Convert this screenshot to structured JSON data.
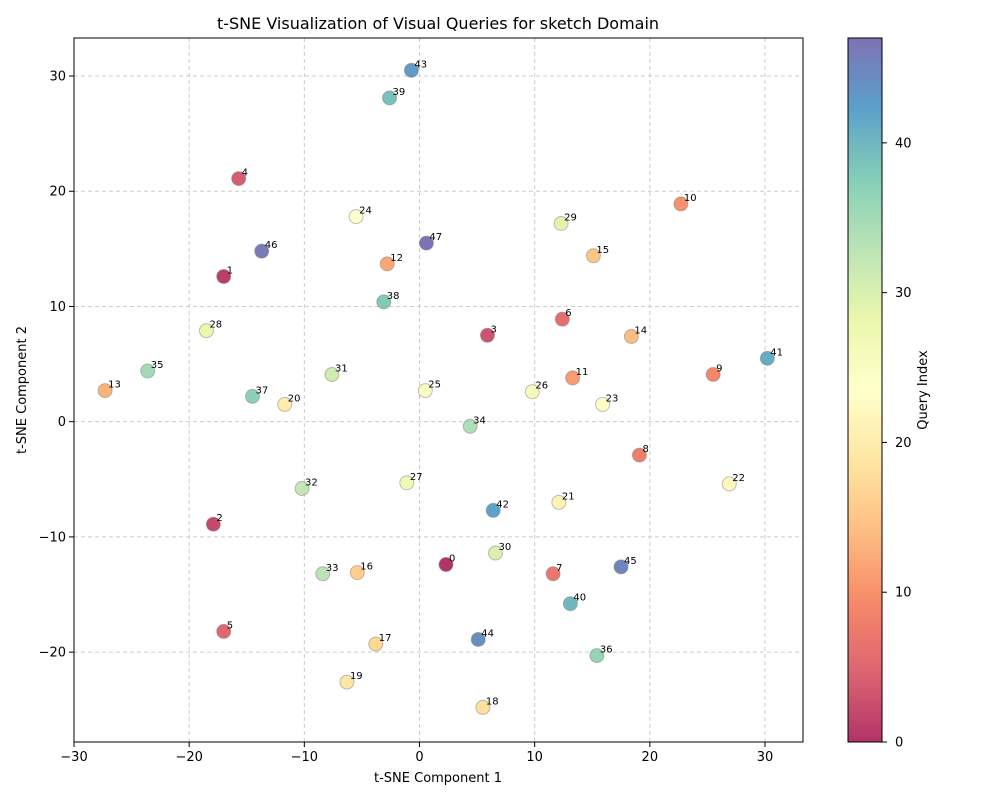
{
  "chart_data": {
    "type": "scatter",
    "title": "t-SNE Visualization of Visual Queries for sketch Domain",
    "xlabel": "t-SNE Component 1",
    "ylabel": "t-SNE Component 2",
    "xlim": [
      -30,
      33.3
    ],
    "ylim": [
      -27.8,
      33.3
    ],
    "xticks": [
      -30,
      -20,
      -10,
      0,
      10,
      20,
      30
    ],
    "yticks": [
      -20,
      -10,
      0,
      10,
      20,
      30
    ],
    "grid": true,
    "colormap": "Spectral",
    "colorbar": {
      "label": "Query Index",
      "min": 0,
      "max": 47,
      "ticks": [
        0,
        10,
        20,
        30,
        40
      ],
      "stops": [
        "#9e0142",
        "#d53e4f",
        "#f46d43",
        "#fdae61",
        "#fee08b",
        "#ffffbf",
        "#e6f598",
        "#abdda4",
        "#66c2a5",
        "#3288bd",
        "#5e4fa2"
      ]
    },
    "points": [
      {
        "label": "0",
        "x": 2.3,
        "y": -12.4
      },
      {
        "label": "1",
        "x": -17.0,
        "y": 12.6
      },
      {
        "label": "2",
        "x": -17.9,
        "y": -8.9
      },
      {
        "label": "3",
        "x": 5.9,
        "y": 7.5
      },
      {
        "label": "4",
        "x": -15.7,
        "y": 21.1
      },
      {
        "label": "5",
        "x": -17.0,
        "y": -18.2
      },
      {
        "label": "6",
        "x": 12.4,
        "y": 8.9
      },
      {
        "label": "7",
        "x": 11.6,
        "y": -13.2
      },
      {
        "label": "8",
        "x": 19.1,
        "y": -2.9
      },
      {
        "label": "9",
        "x": 25.5,
        "y": 4.1
      },
      {
        "label": "10",
        "x": 22.7,
        "y": 18.9
      },
      {
        "label": "11",
        "x": 13.3,
        "y": 3.8
      },
      {
        "label": "12",
        "x": -2.8,
        "y": 13.7
      },
      {
        "label": "13",
        "x": -27.3,
        "y": 2.7
      },
      {
        "label": "14",
        "x": 18.4,
        "y": 7.4
      },
      {
        "label": "15",
        "x": 15.1,
        "y": 14.4
      },
      {
        "label": "16",
        "x": -5.4,
        "y": -13.1
      },
      {
        "label": "17",
        "x": -3.8,
        "y": -19.3
      },
      {
        "label": "18",
        "x": 5.5,
        "y": -24.8
      },
      {
        "label": "19",
        "x": -6.3,
        "y": -22.6
      },
      {
        "label": "20",
        "x": -11.7,
        "y": 1.5
      },
      {
        "label": "21",
        "x": 12.1,
        "y": -7.0
      },
      {
        "label": "22",
        "x": 26.9,
        "y": -5.4
      },
      {
        "label": "23",
        "x": 15.9,
        "y": 1.5
      },
      {
        "label": "24",
        "x": -5.5,
        "y": 17.8
      },
      {
        "label": "25",
        "x": 0.5,
        "y": 2.7
      },
      {
        "label": "26",
        "x": 9.8,
        "y": 2.6
      },
      {
        "label": "27",
        "x": -1.1,
        "y": -5.3
      },
      {
        "label": "28",
        "x": -18.5,
        "y": 7.9
      },
      {
        "label": "29",
        "x": 12.3,
        "y": 17.2
      },
      {
        "label": "30",
        "x": 6.6,
        "y": -11.4
      },
      {
        "label": "31",
        "x": -7.6,
        "y": 4.1
      },
      {
        "label": "32",
        "x": -10.2,
        "y": -5.8
      },
      {
        "label": "33",
        "x": -8.4,
        "y": -13.2
      },
      {
        "label": "34",
        "x": 4.4,
        "y": -0.4
      },
      {
        "label": "35",
        "x": -23.6,
        "y": 4.4
      },
      {
        "label": "36",
        "x": 15.4,
        "y": -20.3
      },
      {
        "label": "37",
        "x": -14.5,
        "y": 2.2
      },
      {
        "label": "38",
        "x": -3.1,
        "y": 10.4
      },
      {
        "label": "39",
        "x": -2.6,
        "y": 28.1
      },
      {
        "label": "40",
        "x": 13.1,
        "y": -15.8
      },
      {
        "label": "41",
        "x": 30.2,
        "y": 5.5
      },
      {
        "label": "42",
        "x": 6.4,
        "y": -7.7
      },
      {
        "label": "43",
        "x": -0.7,
        "y": 30.5
      },
      {
        "label": "44",
        "x": 5.1,
        "y": -18.9
      },
      {
        "label": "45",
        "x": 17.5,
        "y": -12.6
      },
      {
        "label": "46",
        "x": -13.7,
        "y": 14.8
      },
      {
        "label": "47",
        "x": 0.6,
        "y": 15.5
      }
    ]
  }
}
